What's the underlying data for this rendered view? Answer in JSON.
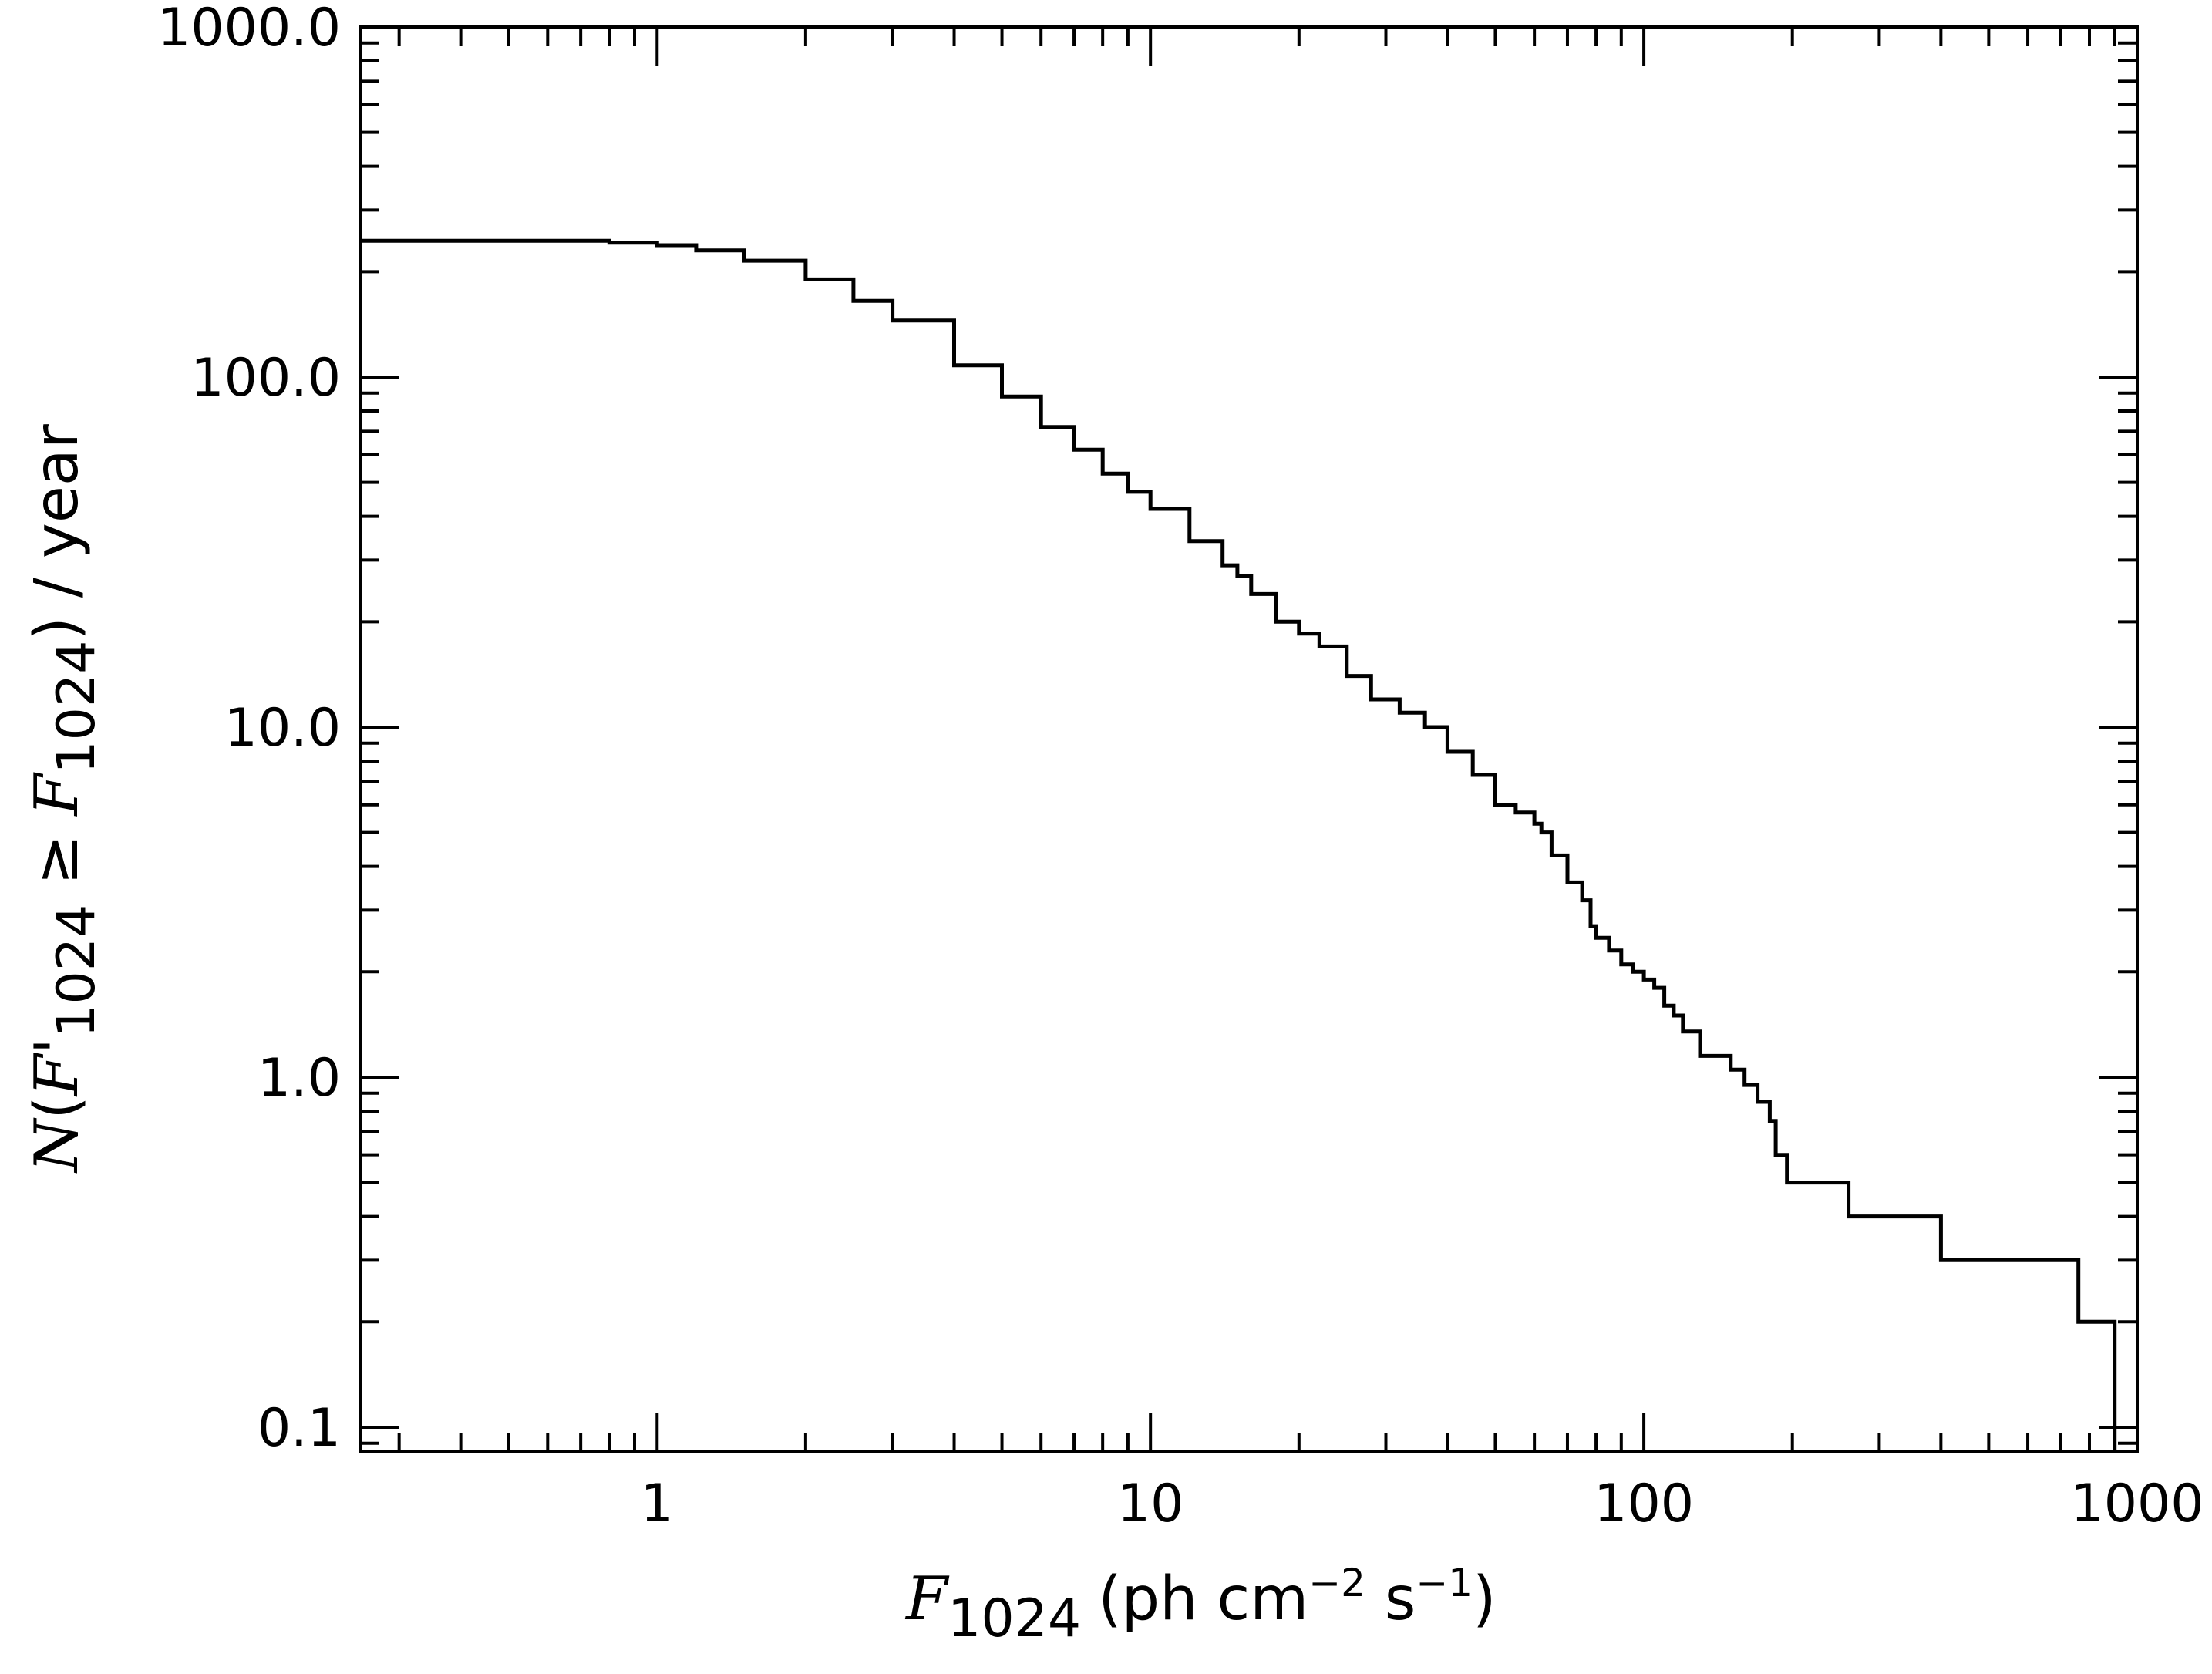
{
  "chart_data": {
    "type": "line",
    "title": "",
    "x_scale": "log",
    "y_scale": "log",
    "xlim": [
      0.25,
      1000
    ],
    "ylim": [
      0.085,
      1000
    ],
    "x_ticks": [
      1,
      10,
      100,
      1000
    ],
    "x_tick_labels": [
      "1",
      "10",
      "100",
      "1000"
    ],
    "y_ticks": [
      0.1,
      1,
      10,
      100,
      1000
    ],
    "y_tick_labels": [
      "0.1",
      "1.0",
      "10.0",
      "100.0",
      "1000.0"
    ],
    "xlabel": {
      "var": "F",
      "sub": "1024",
      "unit_open": "(ph cm",
      "unit_exp1": "−2",
      "unit_mid": " s",
      "unit_exp2": "−1",
      "unit_close": ")"
    },
    "ylabel": {
      "n": "N",
      "open": "(",
      "var1": "F'",
      "sub1": "1024",
      "ge": " ≥ ",
      "var2": "F",
      "sub2": "1024",
      "close": ")",
      "rest": " / year"
    },
    "grid": false,
    "step": true,
    "series": [
      {
        "x": [
          0.25,
          0.5,
          0.8,
          1.0,
          1.2,
          1.5,
          2.0,
          2.5,
          3.0,
          4.0,
          5.0,
          6.0,
          7.0,
          8.0,
          9.0,
          10.0,
          12.0,
          14.0,
          15.0,
          16.0,
          18.0,
          20.0,
          22.0,
          25.0,
          28.0,
          32.0,
          36.0,
          40.0,
          45.0,
          50.0,
          55.0,
          60.0,
          62.0,
          65.0,
          70.0,
          75.0,
          78.0,
          80.0,
          85.0,
          90.0,
          95.0,
          100.0,
          105.0,
          110.0,
          115.0,
          120.0,
          130.0,
          150.0,
          160.0,
          170.0,
          180.0,
          185.0,
          195.0,
          260.0,
          400.0,
          760.0,
          900.0
        ],
        "y": [
          245,
          245,
          242,
          238,
          230,
          215,
          190,
          165,
          145,
          108,
          88,
          72,
          62,
          53,
          47,
          42,
          34,
          29,
          27,
          24,
          20,
          18.5,
          17,
          14,
          12,
          11,
          10,
          8.5,
          7.3,
          6.0,
          5.7,
          5.3,
          5.0,
          4.3,
          3.6,
          3.2,
          2.7,
          2.5,
          2.3,
          2.1,
          2.0,
          1.9,
          1.8,
          1.6,
          1.5,
          1.35,
          1.15,
          1.05,
          0.95,
          0.85,
          0.75,
          0.6,
          0.5,
          0.4,
          0.3,
          0.2,
          0.1
        ]
      }
    ]
  }
}
